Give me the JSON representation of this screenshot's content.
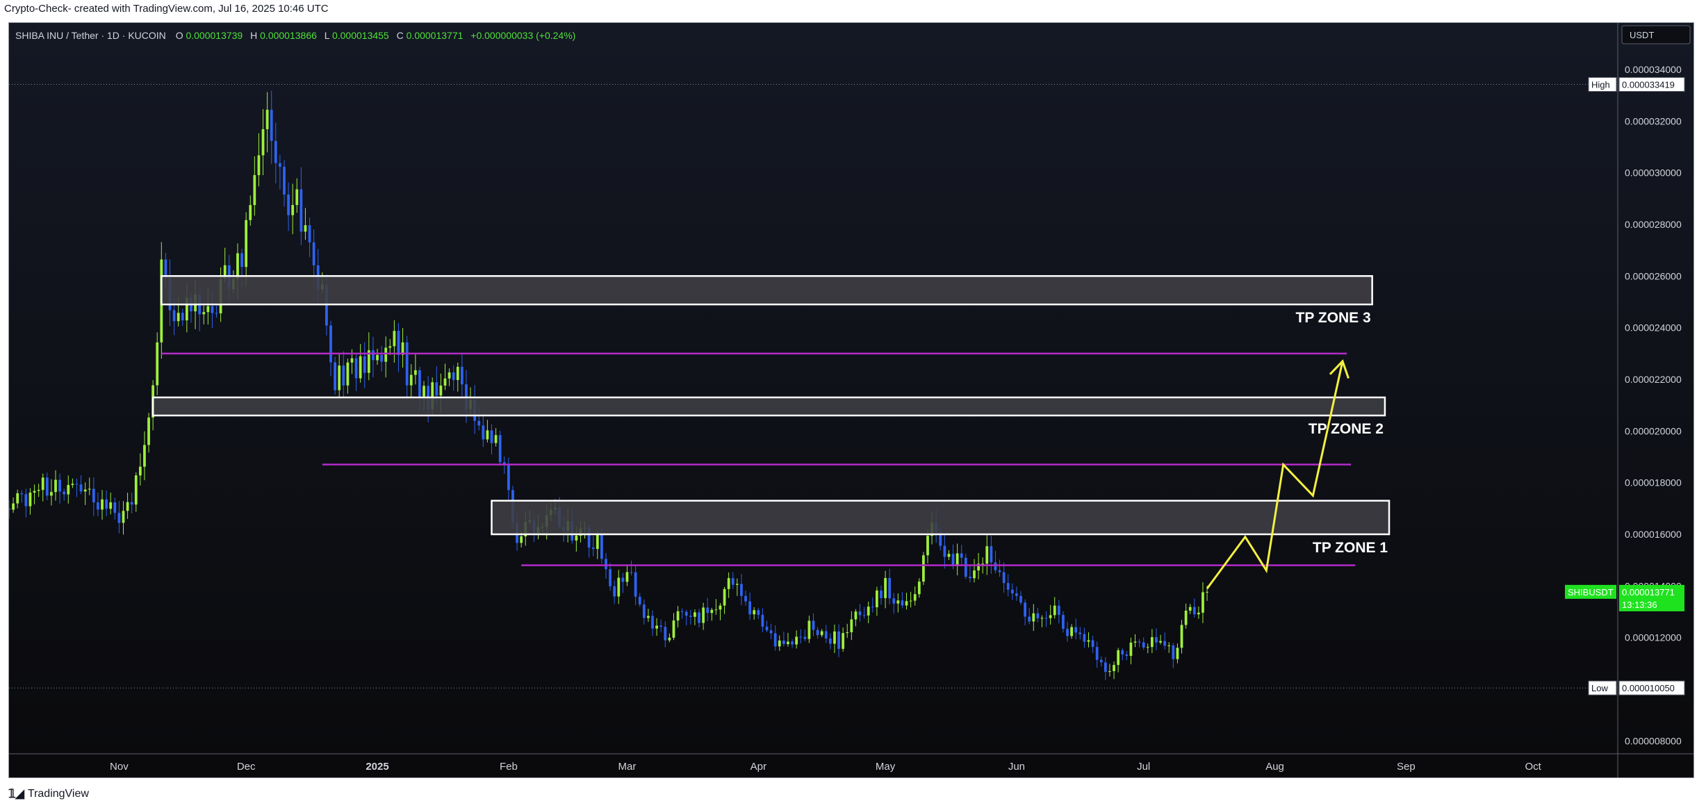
{
  "caption": "Crypto-Check- created with TradingView.com, Jul 16, 2025 10:46 UTC",
  "brand": "TradingView",
  "colors": {
    "up": "#9eef3c",
    "down": "#2e62f0",
    "zone_fill": "#3f3f44",
    "zone_stroke": "#ffffff",
    "magenta": "#b32bc9",
    "arrow": "#f5f041",
    "price_tag": "#1fe21f"
  },
  "legend": {
    "symbol": "SHIBA INU / Tether · 1D · KUCOIN",
    "o_label": "O",
    "o_value": "0.000013739",
    "h_label": "H",
    "h_value": "0.000013866",
    "l_label": "L",
    "l_value": "0.000013455",
    "c_label": "C",
    "c_value": "0.000013771",
    "change": "+0.000000033 (+0.24%)"
  },
  "currency": "USDT",
  "chart_data": {
    "type": "candlestick",
    "symbol": "SHIBUSDT",
    "timeframe": "1D",
    "exchange": "KUCOIN",
    "x_range": [
      "2024-10-06",
      "2025-10-21"
    ],
    "ylim": [
      7.5e-06,
      3.58e-05
    ],
    "y_ticks": [
      "0.000034000",
      "0.000032000",
      "0.000030000",
      "0.000028000",
      "0.000026000",
      "0.000024000",
      "0.000022000",
      "0.000020000",
      "0.000018000",
      "0.000016000",
      "0.000014000",
      "0.000012000",
      "0.000010000",
      "0.000008000"
    ],
    "x_ticks": [
      {
        "label": "Nov",
        "date": "2024-11-01"
      },
      {
        "label": "Dec",
        "date": "2024-12-01"
      },
      {
        "label": "2025",
        "date": "2025-01-01"
      },
      {
        "label": "Feb",
        "date": "2025-02-01"
      },
      {
        "label": "Mar",
        "date": "2025-03-01"
      },
      {
        "label": "Apr",
        "date": "2025-04-01"
      },
      {
        "label": "May",
        "date": "2025-05-01"
      },
      {
        "label": "Jun",
        "date": "2025-06-01"
      },
      {
        "label": "Jul",
        "date": "2025-07-01"
      },
      {
        "label": "Aug",
        "date": "2025-08-01"
      },
      {
        "label": "Sep",
        "date": "2025-09-01"
      },
      {
        "label": "Oct",
        "date": "2025-10-01"
      }
    ],
    "high": {
      "label": "High",
      "value": "0.000033419"
    },
    "low": {
      "label": "Low",
      "value": "0.000010050"
    },
    "last_price": {
      "label": "SHIBUSDT",
      "value": "0.000013771",
      "countdown": "13:13:36"
    },
    "close_path": [
      [
        "2024-10-06",
        1.7e-05
      ],
      [
        "2024-10-12",
        1.77e-05
      ],
      [
        "2024-10-20",
        1.8e-05
      ],
      [
        "2024-10-27",
        1.73e-05
      ],
      [
        "2024-11-01",
        1.66e-05
      ],
      [
        "2024-11-06",
        1.82e-05
      ],
      [
        "2024-11-09",
        2.13e-05
      ],
      [
        "2024-11-11",
        2.62e-05
      ],
      [
        "2024-11-13",
        2.45e-05
      ],
      [
        "2024-11-18",
        2.47e-05
      ],
      [
        "2024-11-24",
        2.52e-05
      ],
      [
        "2024-11-30",
        2.69e-05
      ],
      [
        "2024-12-02",
        2.9e-05
      ],
      [
        "2024-12-04",
        3.15e-05
      ],
      [
        "2024-12-07",
        3.18e-05
      ],
      [
        "2024-12-10",
        2.9e-05
      ],
      [
        "2024-12-15",
        2.83e-05
      ],
      [
        "2024-12-19",
        2.55e-05
      ],
      [
        "2024-12-22",
        2.22e-05
      ],
      [
        "2024-12-27",
        2.22e-05
      ],
      [
        "2025-01-01",
        2.27e-05
      ],
      [
        "2025-01-05",
        2.42e-05
      ],
      [
        "2025-01-08",
        2.22e-05
      ],
      [
        "2025-01-13",
        2.13e-05
      ],
      [
        "2025-01-18",
        2.27e-05
      ],
      [
        "2025-01-20",
        2.2e-05
      ],
      [
        "2025-01-25",
        2.04e-05
      ],
      [
        "2025-01-30",
        1.91e-05
      ],
      [
        "2025-02-03",
        1.6e-05
      ],
      [
        "2025-02-08",
        1.64e-05
      ],
      [
        "2025-02-12",
        1.68e-05
      ],
      [
        "2025-02-17",
        1.6e-05
      ],
      [
        "2025-02-22",
        1.57e-05
      ],
      [
        "2025-02-25",
        1.38e-05
      ],
      [
        "2025-03-02",
        1.46e-05
      ],
      [
        "2025-03-04",
        1.3e-05
      ],
      [
        "2025-03-10",
        1.2e-05
      ],
      [
        "2025-03-14",
        1.3e-05
      ],
      [
        "2025-03-20",
        1.28e-05
      ],
      [
        "2025-03-26",
        1.42e-05
      ],
      [
        "2025-03-31",
        1.3e-05
      ],
      [
        "2025-04-07",
        1.15e-05
      ],
      [
        "2025-04-10",
        1.2e-05
      ],
      [
        "2025-04-14",
        1.25e-05
      ],
      [
        "2025-04-20",
        1.18e-05
      ],
      [
        "2025-04-26",
        1.32e-05
      ],
      [
        "2025-05-01",
        1.4e-05
      ],
      [
        "2025-05-06",
        1.32e-05
      ],
      [
        "2025-05-10",
        1.48e-05
      ],
      [
        "2025-05-12",
        1.65e-05
      ],
      [
        "2025-05-15",
        1.55e-05
      ],
      [
        "2025-05-21",
        1.45e-05
      ],
      [
        "2025-05-25",
        1.52e-05
      ],
      [
        "2025-05-29",
        1.45e-05
      ],
      [
        "2025-06-03",
        1.28e-05
      ],
      [
        "2025-06-10",
        1.32e-05
      ],
      [
        "2025-06-13",
        1.22e-05
      ],
      [
        "2025-06-18",
        1.18e-05
      ],
      [
        "2025-06-22",
        1.05e-05
      ],
      [
        "2025-06-26",
        1.15e-05
      ],
      [
        "2025-07-03",
        1.18e-05
      ],
      [
        "2025-07-08",
        1.13e-05
      ],
      [
        "2025-07-11",
        1.27e-05
      ],
      [
        "2025-07-14",
        1.32e-05
      ],
      [
        "2025-07-16",
        1.37e-05
      ]
    ],
    "zones": [
      {
        "label": "TP ZONE 1",
        "from": "2025-01-28",
        "to": "2025-08-28",
        "y_low": 1.6e-05,
        "y_high": 1.73e-05
      },
      {
        "label": "TP ZONE 2",
        "from": "2024-11-09",
        "to": "2025-08-27",
        "y_low": 2.06e-05,
        "y_high": 2.13e-05
      },
      {
        "label": "TP ZONE 3",
        "from": "2024-11-11",
        "to": "2025-08-24",
        "y_low": 2.49e-05,
        "y_high": 2.6e-05
      }
    ],
    "lines": [
      {
        "from": "2024-11-11",
        "to": "2025-08-18",
        "y": 2.3e-05
      },
      {
        "from": "2024-12-19",
        "to": "2025-08-19",
        "y": 1.87e-05
      },
      {
        "from": "2025-02-04",
        "to": "2025-08-20",
        "y": 1.48e-05
      }
    ],
    "projection": [
      [
        "2025-07-16",
        1.39e-05
      ],
      [
        "2025-07-25",
        1.59e-05
      ],
      [
        "2025-07-30",
        1.46e-05
      ],
      [
        "2025-08-03",
        1.87e-05
      ],
      [
        "2025-08-10",
        1.75e-05
      ],
      [
        "2025-08-17",
        2.27e-05
      ]
    ]
  }
}
